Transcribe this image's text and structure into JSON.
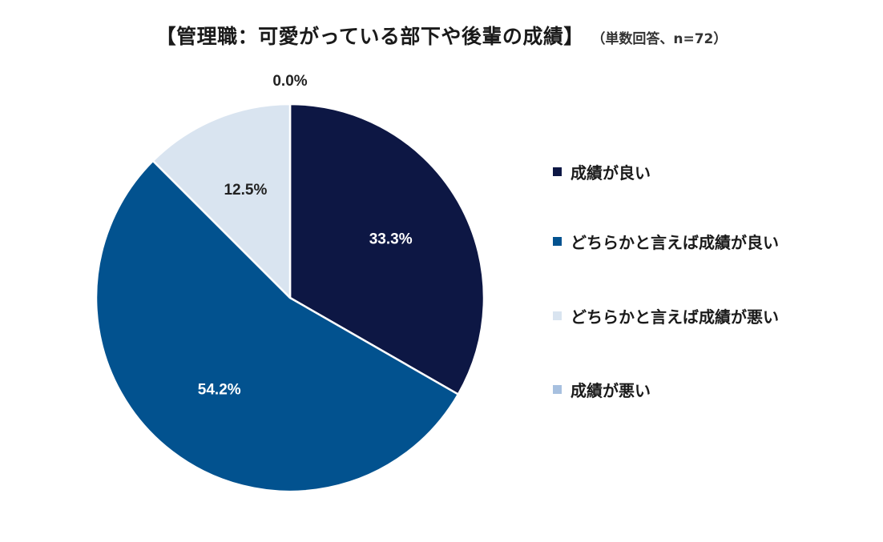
{
  "title": "【管理職：可愛がっている部下や後輩の成績】",
  "subtitle": "（単数回答、n=72）",
  "chart_data": {
    "type": "pie",
    "title": "【管理職：可愛がっている部下や後輩の成績】",
    "subtitle": "（単数回答、n=72）",
    "start": "top, clockwise",
    "categories": [
      "成績が良い",
      "どちらかと言えば成績が良い",
      "どちらかと言えば成績が悪い",
      "成績が悪い"
    ],
    "values": [
      33.3,
      54.2,
      12.5,
      0.0
    ],
    "labels": [
      "33.3%",
      "54.2%",
      "12.5%",
      "0.0%"
    ],
    "colors": [
      "#0d1744",
      "#02528f",
      "#d9e4f0",
      "#a7c0df"
    ],
    "label_colors": [
      "#ffffff",
      "#ffffff",
      "#222222",
      "#222222"
    ],
    "legend_position": "right"
  },
  "legend": [
    {
      "label": "成績が良い",
      "color": "#0d1744"
    },
    {
      "label": "どちらかと言えば成績が良い",
      "color": "#02528f"
    },
    {
      "label": "どちらかと言えば成績が悪い",
      "color": "#d9e4f0"
    },
    {
      "label": "成績が悪い",
      "color": "#a7c0df"
    }
  ]
}
